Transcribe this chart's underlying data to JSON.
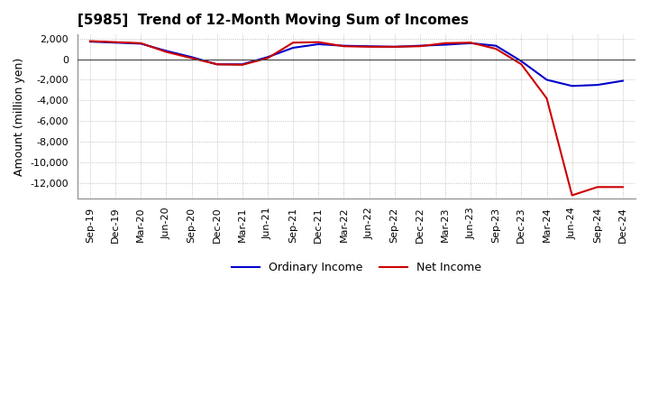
{
  "title": "[5985]  Trend of 12-Month Moving Sum of Incomes",
  "ylabel": "Amount (million yen)",
  "ylim": [
    -13500,
    2400
  ],
  "yticks": [
    2000,
    0,
    -2000,
    -4000,
    -6000,
    -8000,
    -10000,
    -12000
  ],
  "background_color": "#ffffff",
  "plot_bg_color": "#ffffff",
  "grid_color": "#aaaaaa",
  "x_labels": [
    "Sep-19",
    "Dec-19",
    "Mar-20",
    "Jun-20",
    "Sep-20",
    "Dec-20",
    "Mar-21",
    "Jun-21",
    "Sep-21",
    "Dec-21",
    "Mar-22",
    "Jun-22",
    "Sep-22",
    "Dec-22",
    "Mar-23",
    "Jun-23",
    "Sep-23",
    "Dec-23",
    "Mar-24",
    "Jun-24",
    "Sep-24",
    "Dec-24"
  ],
  "ordinary_income": [
    1700,
    1600,
    1500,
    800,
    200,
    -500,
    -500,
    200,
    1100,
    1450,
    1300,
    1250,
    1200,
    1300,
    1400,
    1550,
    1300,
    -200,
    -2000,
    -2600,
    -2500,
    -2100
  ],
  "net_income": [
    1750,
    1650,
    1550,
    700,
    100,
    -500,
    -550,
    100,
    1600,
    1650,
    1250,
    1200,
    1200,
    1250,
    1550,
    1600,
    1000,
    -500,
    -3800,
    -13200,
    -12400,
    -12400
  ],
  "ordinary_color": "#0000cc",
  "net_color": "#cc0000",
  "line_width": 1.5
}
